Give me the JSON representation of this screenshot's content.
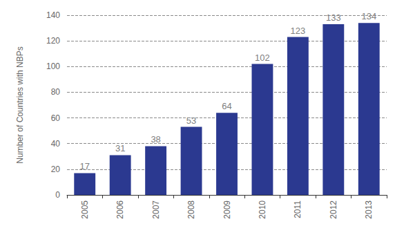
{
  "chart_data": {
    "type": "bar",
    "y_label": "Number of Countries with NBPs",
    "categories": [
      "2005",
      "2006",
      "2007",
      "2008",
      "2009",
      "2010",
      "2011",
      "2012",
      "2013"
    ],
    "values": [
      17,
      31,
      38,
      53,
      64,
      102,
      123,
      133,
      134
    ],
    "color": "#2b3990",
    "ylim": [
      0,
      140
    ],
    "yticks": [
      0,
      20,
      40,
      60,
      80,
      100,
      120,
      140
    ],
    "grid": true,
    "data_labels": true
  }
}
